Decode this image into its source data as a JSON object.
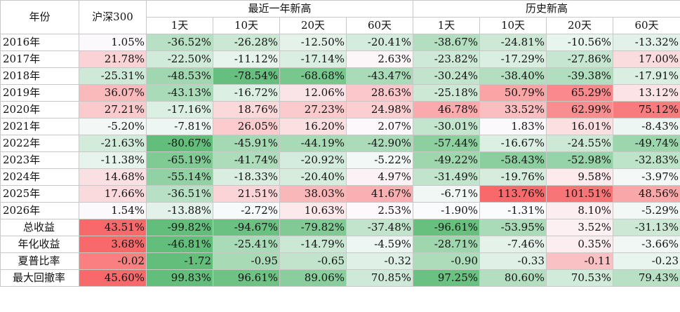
{
  "header": {
    "year_label": "年份",
    "index_label": "沪深300",
    "groups": [
      {
        "label": "最近一年新高",
        "subcols": [
          "1天",
          "10天",
          "20天",
          "60天"
        ]
      },
      {
        "label": "历史新高",
        "subcols": [
          "1天",
          "10天",
          "20天",
          "60天"
        ]
      }
    ]
  },
  "rows": [
    {
      "label": "2016年",
      "summary": false,
      "values": [
        "1.05%",
        "-36.52%",
        "-26.28%",
        "-12.50%",
        "-20.41%",
        "-38.67%",
        "-24.81%",
        "-10.56%",
        "-13.32%"
      ],
      "levels": [
        0.02,
        -0.45,
        -0.33,
        -0.16,
        -0.26,
        -0.48,
        -0.31,
        -0.13,
        -0.17
      ]
    },
    {
      "label": "2017年",
      "summary": false,
      "values": [
        "21.78%",
        "-22.50%",
        "-11.12%",
        "-17.14%",
        "2.63%",
        "-23.82%",
        "-17.29%",
        "-27.86%",
        "17.00%"
      ],
      "levels": [
        0.28,
        -0.28,
        -0.14,
        -0.22,
        0.04,
        -0.3,
        -0.22,
        -0.35,
        0.22
      ]
    },
    {
      "label": "2018年",
      "summary": false,
      "values": [
        "-25.31%",
        "-48.53%",
        "-78.54%",
        "-68.68%",
        "-43.47%",
        "-30.24%",
        "-38.40%",
        "-39.38%",
        "-17.91%"
      ],
      "levels": [
        -0.3,
        -0.6,
        -0.98,
        -0.86,
        -0.54,
        -0.38,
        -0.48,
        -0.49,
        -0.22
      ]
    },
    {
      "label": "2019年",
      "summary": false,
      "values": [
        "36.07%",
        "-43.13%",
        "-16.72%",
        "12.06%",
        "28.63%",
        "-25.18%",
        "50.79%",
        "65.29%",
        "13.12%"
      ],
      "levels": [
        0.45,
        -0.54,
        -0.21,
        0.16,
        0.36,
        -0.31,
        0.6,
        0.78,
        0.17
      ]
    },
    {
      "label": "2020年",
      "summary": false,
      "values": [
        "27.21%",
        "-17.16%",
        "18.76%",
        "27.23%",
        "24.98%",
        "46.78%",
        "33.52%",
        "62.99%",
        "75.12%"
      ],
      "levels": [
        0.34,
        -0.21,
        0.24,
        0.34,
        0.31,
        0.56,
        0.42,
        0.75,
        0.88
      ]
    },
    {
      "label": "2021年",
      "summary": false,
      "values": [
        "-5.20%",
        "-7.81%",
        "26.05%",
        "16.20%",
        "2.07%",
        "-30.01%",
        "1.83%",
        "16.01%",
        "-8.43%"
      ],
      "levels": [
        -0.06,
        -0.1,
        0.33,
        0.2,
        0.03,
        -0.37,
        0.02,
        0.2,
        -0.1
      ]
    },
    {
      "label": "2022年",
      "summary": false,
      "values": [
        "-21.63%",
        "-80.67%",
        "-45.91%",
        "-44.19%",
        "-42.90%",
        "-57.44%",
        "-16.67%",
        "-24.55%",
        "-49.74%"
      ],
      "levels": [
        -0.27,
        -1.0,
        -0.57,
        -0.55,
        -0.53,
        -0.72,
        -0.21,
        -0.31,
        -0.62
      ]
    },
    {
      "label": "2023年",
      "summary": false,
      "values": [
        "-11.38%",
        "-65.19%",
        "-41.74%",
        "-20.92%",
        "-5.22%",
        "-49.22%",
        "-58.43%",
        "-52.98%",
        "-32.83%"
      ],
      "levels": [
        -0.14,
        -0.81,
        -0.52,
        -0.26,
        -0.07,
        -0.61,
        -0.73,
        -0.66,
        -0.41
      ]
    },
    {
      "label": "2024年",
      "summary": false,
      "values": [
        "14.68%",
        "-55.14%",
        "-18.33%",
        "-20.40%",
        "4.97%",
        "-31.49%",
        "-19.76%",
        "9.58%",
        "-3.97%"
      ],
      "levels": [
        0.19,
        -0.69,
        -0.23,
        -0.25,
        0.07,
        -0.39,
        -0.25,
        0.12,
        -0.05
      ]
    },
    {
      "label": "2025年",
      "summary": false,
      "values": [
        "17.66%",
        "-36.51%",
        "21.51%",
        "38.03%",
        "41.67%",
        "-6.71%",
        "113.76%",
        "101.51%",
        "48.56%"
      ],
      "levels": [
        0.23,
        -0.45,
        0.27,
        0.47,
        0.52,
        -0.08,
        1.0,
        0.92,
        0.58
      ]
    },
    {
      "label": "2026年",
      "summary": false,
      "values": [
        "1.54%",
        "-13.88%",
        "-2.72%",
        "10.63%",
        "2.53%",
        "-1.90%",
        "-1.31%",
        "8.10%",
        "-5.29%"
      ],
      "levels": [
        0.02,
        -0.17,
        -0.03,
        0.13,
        0.03,
        -0.02,
        -0.02,
        0.1,
        -0.07
      ]
    },
    {
      "label": "总收益",
      "summary": true,
      "values": [
        "43.51%",
        "-99.82%",
        "-94.67%",
        "-79.82%",
        "-37.48%",
        "-96.61%",
        "-53.95%",
        "3.52%",
        "-31.13%"
      ],
      "levels": [
        1.0,
        -1.0,
        -0.95,
        -0.8,
        -0.38,
        -0.97,
        -0.54,
        0.08,
        -0.31
      ]
    },
    {
      "label": "年化收益",
      "summary": true,
      "values": [
        "3.68%",
        "-46.81%",
        "-25.41%",
        "-14.79%",
        "-4.59%",
        "-28.71%",
        "-7.46%",
        "0.35%",
        "-3.66%"
      ],
      "levels": [
        1.0,
        -1.0,
        -0.54,
        -0.32,
        -0.1,
        -0.61,
        -0.16,
        0.1,
        -0.08
      ]
    },
    {
      "label": "夏普比率",
      "summary": true,
      "values": [
        "-0.02",
        "-1.72",
        "-0.95",
        "-0.65",
        "-0.32",
        "-0.90",
        "-0.33",
        "-0.11",
        "-0.23"
      ],
      "levels": [
        0.85,
        -1.0,
        -0.55,
        -0.38,
        -0.19,
        -0.52,
        -0.19,
        0.4,
        -0.13
      ]
    },
    {
      "label": "最大回撤率",
      "summary": true,
      "values": [
        "45.60%",
        "99.83%",
        "96.61%",
        "89.06%",
        "70.85%",
        "97.25%",
        "80.60%",
        "70.53%",
        "79.43%"
      ],
      "levels": [
        1.0,
        -1.0,
        -0.93,
        -0.75,
        -0.3,
        -0.95,
        -0.48,
        -0.28,
        -0.45
      ]
    }
  ],
  "colors": {
    "positive": "#f8696b",
    "negative": "#63be7b",
    "neutral": "#fcfcff"
  }
}
